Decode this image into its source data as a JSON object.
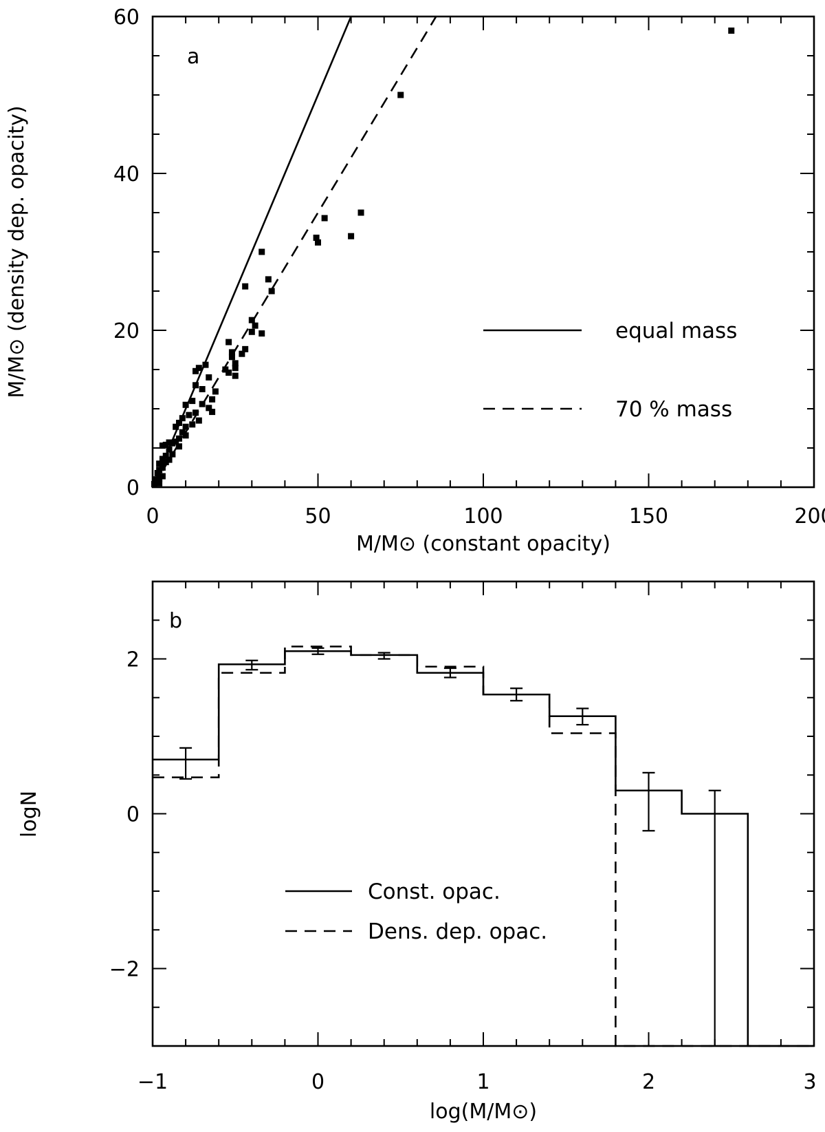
{
  "chart_data": [
    {
      "type": "scatter",
      "panel_label": "a",
      "xlabel": "M/M⊙ (constant opacity)",
      "ylabel": "M/M⊙ (density dep. opacity)",
      "xlim": [
        0,
        200
      ],
      "ylim": [
        0,
        60
      ],
      "xticks": [
        0,
        50,
        100,
        150,
        200
      ],
      "yticks": [
        0,
        20,
        40,
        60
      ],
      "xtick_labels": [
        "0",
        "50",
        "100",
        "150",
        "200"
      ],
      "ytick_labels": [
        "0",
        "20",
        "40",
        "60"
      ],
      "lines": [
        {
          "name": "equal mass",
          "style": "solid",
          "slope": 1.0
        },
        {
          "name": "70 % mass",
          "style": "dashed",
          "slope": 0.7
        }
      ],
      "points": [
        [
          175,
          58.2
        ],
        [
          75,
          50
        ],
        [
          63,
          35
        ],
        [
          60,
          32
        ],
        [
          52,
          34.3
        ],
        [
          49.5,
          31.8
        ],
        [
          50,
          31.2
        ],
        [
          33,
          30
        ],
        [
          28,
          25.6
        ],
        [
          35,
          26.5
        ],
        [
          36,
          25
        ],
        [
          30,
          21.3
        ],
        [
          31,
          20.6
        ],
        [
          30,
          19.8
        ],
        [
          33,
          19.6
        ],
        [
          28,
          17.6
        ],
        [
          27,
          17
        ],
        [
          25,
          15.8
        ],
        [
          25,
          15.2
        ],
        [
          25,
          14.2
        ],
        [
          23,
          18.5
        ],
        [
          24,
          17.2
        ],
        [
          24,
          16.6
        ],
        [
          22,
          15
        ],
        [
          23,
          14.6
        ],
        [
          16,
          15.6
        ],
        [
          14,
          15.2
        ],
        [
          13,
          14.8
        ],
        [
          17,
          14
        ],
        [
          13,
          13
        ],
        [
          15,
          12.5
        ],
        [
          19,
          12.2
        ],
        [
          18,
          11.2
        ],
        [
          15,
          10.6
        ],
        [
          17,
          10.1
        ],
        [
          18,
          9.6
        ],
        [
          12,
          11
        ],
        [
          10,
          10.5
        ],
        [
          11,
          9.2
        ],
        [
          13,
          9.5
        ],
        [
          14,
          8.5
        ],
        [
          12,
          8
        ],
        [
          10,
          7.7
        ],
        [
          9,
          8.8
        ],
        [
          8,
          8.2
        ],
        [
          7,
          7.7
        ],
        [
          9,
          7
        ],
        [
          10,
          6.6
        ],
        [
          8,
          6.2
        ],
        [
          7,
          5.8
        ],
        [
          8,
          5.2
        ],
        [
          6,
          5.6
        ],
        [
          5,
          5.7
        ],
        [
          4,
          5.4
        ],
        [
          3,
          5.3
        ],
        [
          5,
          4.8
        ],
        [
          6,
          4.2
        ],
        [
          4,
          4
        ],
        [
          3,
          3.6
        ],
        [
          4,
          3.2
        ],
        [
          5,
          3.5
        ],
        [
          2,
          3
        ],
        [
          3,
          2.5
        ],
        [
          2,
          2.2
        ],
        [
          1.5,
          1.8
        ],
        [
          3,
          1.4
        ],
        [
          2,
          1.1
        ],
        [
          1,
          1
        ],
        [
          1,
          0.6
        ],
        [
          2,
          0.5
        ],
        [
          0.5,
          0.4
        ]
      ],
      "legend": [
        "equal mass",
        "70 % mass"
      ]
    },
    {
      "type": "line",
      "step": true,
      "panel_label": "b",
      "xlabel": "log(M/M⊙)",
      "ylabel": "logN",
      "xlim": [
        -1,
        3
      ],
      "ylim": [
        -3,
        3
      ],
      "xticks": [
        -1,
        0,
        1,
        2,
        3
      ],
      "yticks": [
        -2,
        0,
        2
      ],
      "xtick_labels": [
        "−1",
        "0",
        "1",
        "2",
        "3"
      ],
      "ytick_labels": [
        "−2",
        "0",
        "2"
      ],
      "bin_edges": [
        -1,
        -0.6,
        -0.2,
        0.2,
        0.6,
        1.0,
        1.4,
        1.8,
        2.2,
        2.6,
        3.0
      ],
      "series": [
        {
          "name": "Const. opac.",
          "style": "solid",
          "values": [
            0.7,
            1.93,
            2.1,
            2.05,
            1.82,
            1.54,
            1.26,
            0.3,
            0.0,
            -3.0
          ]
        },
        {
          "name": "Dens. dep. opac.",
          "style": "dashed",
          "values": [
            0.47,
            1.82,
            2.16,
            2.05,
            1.9,
            1.54,
            1.04,
            -3.0,
            -3.0,
            -3.0
          ]
        }
      ],
      "error_bars": [
        {
          "x": -0.8,
          "lo": 0.45,
          "hi": 0.85
        },
        {
          "x": -0.4,
          "lo": 1.86,
          "hi": 1.98
        },
        {
          "x": 0.0,
          "lo": 2.06,
          "hi": 2.14
        },
        {
          "x": 0.4,
          "lo": 2.0,
          "hi": 2.08
        },
        {
          "x": 0.8,
          "lo": 1.76,
          "hi": 1.88
        },
        {
          "x": 1.2,
          "lo": 1.46,
          "hi": 1.62
        },
        {
          "x": 1.6,
          "lo": 1.15,
          "hi": 1.36
        },
        {
          "x": 2.0,
          "lo": -0.22,
          "hi": 0.53
        },
        {
          "x": 2.4,
          "lo": -3.0,
          "hi": 0.3
        }
      ],
      "legend": [
        "Const. opac.",
        "Dens. dep. opac."
      ]
    }
  ]
}
